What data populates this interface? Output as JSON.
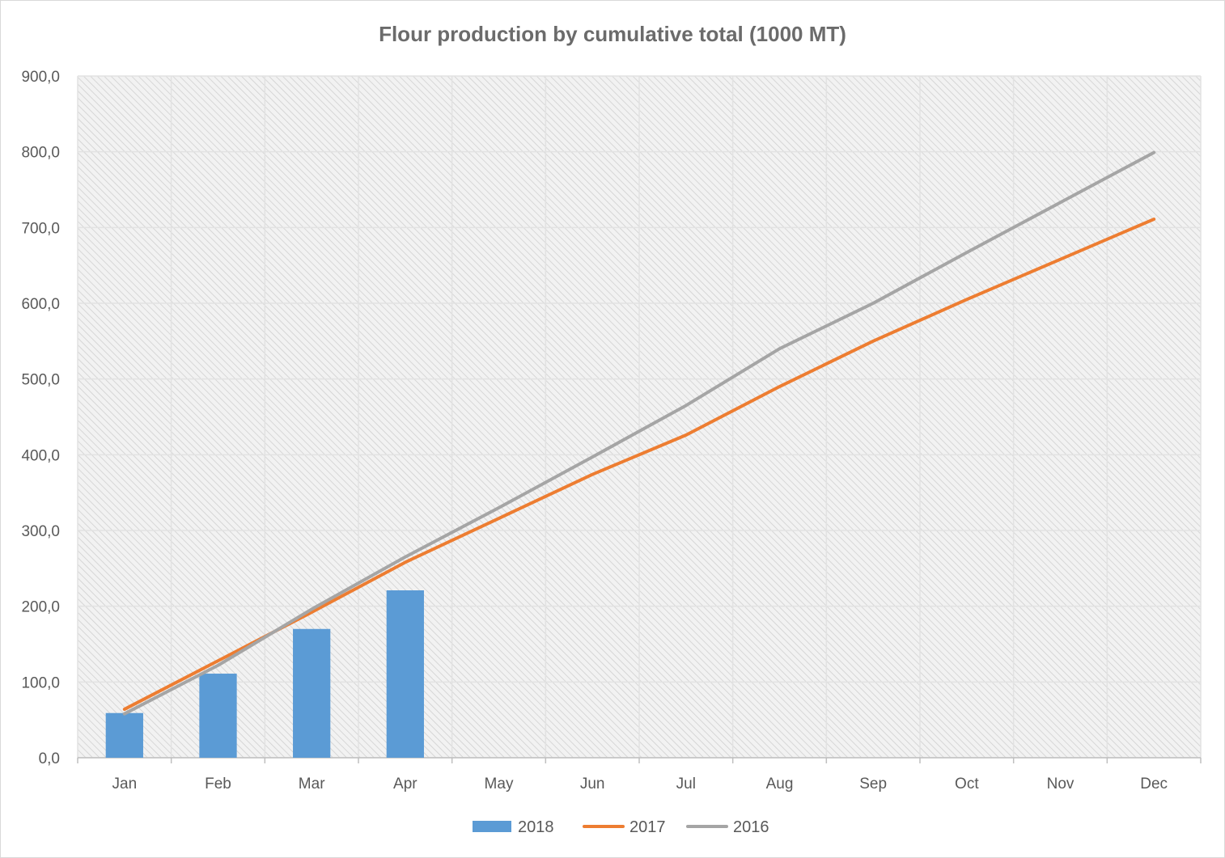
{
  "chart_data": {
    "type": "bar+line",
    "title": "Flour production by cumulative total (1000 MT)",
    "xlabel": "",
    "ylabel": "",
    "ylim": [
      0,
      900
    ],
    "yticks": [
      "0,0",
      "100,0",
      "200,0",
      "300,0",
      "400,0",
      "500,0",
      "600,0",
      "700,0",
      "800,0",
      "900,0"
    ],
    "categories": [
      "Jan",
      "Feb",
      "Mar",
      "Apr",
      "May",
      "Jun",
      "Jul",
      "Aug",
      "Sep",
      "Oct",
      "Nov",
      "Dec"
    ],
    "grid": true,
    "legend_position": "bottom",
    "series": [
      {
        "name": "2018",
        "kind": "bar",
        "color": "#5b9bd5",
        "values": [
          59,
          111,
          170,
          221,
          null,
          null,
          null,
          null,
          null,
          null,
          null,
          null
        ]
      },
      {
        "name": "2017",
        "kind": "line",
        "color": "#ed7d31",
        "values": [
          64,
          128,
          192,
          258,
          316,
          374,
          426,
          490,
          550,
          605,
          658,
          711
        ]
      },
      {
        "name": "2016",
        "kind": "line",
        "color": "#a5a5a5",
        "values": [
          58,
          122,
          196,
          265,
          330,
          397,
          465,
          540,
          600,
          667,
          733,
          799
        ]
      }
    ]
  }
}
